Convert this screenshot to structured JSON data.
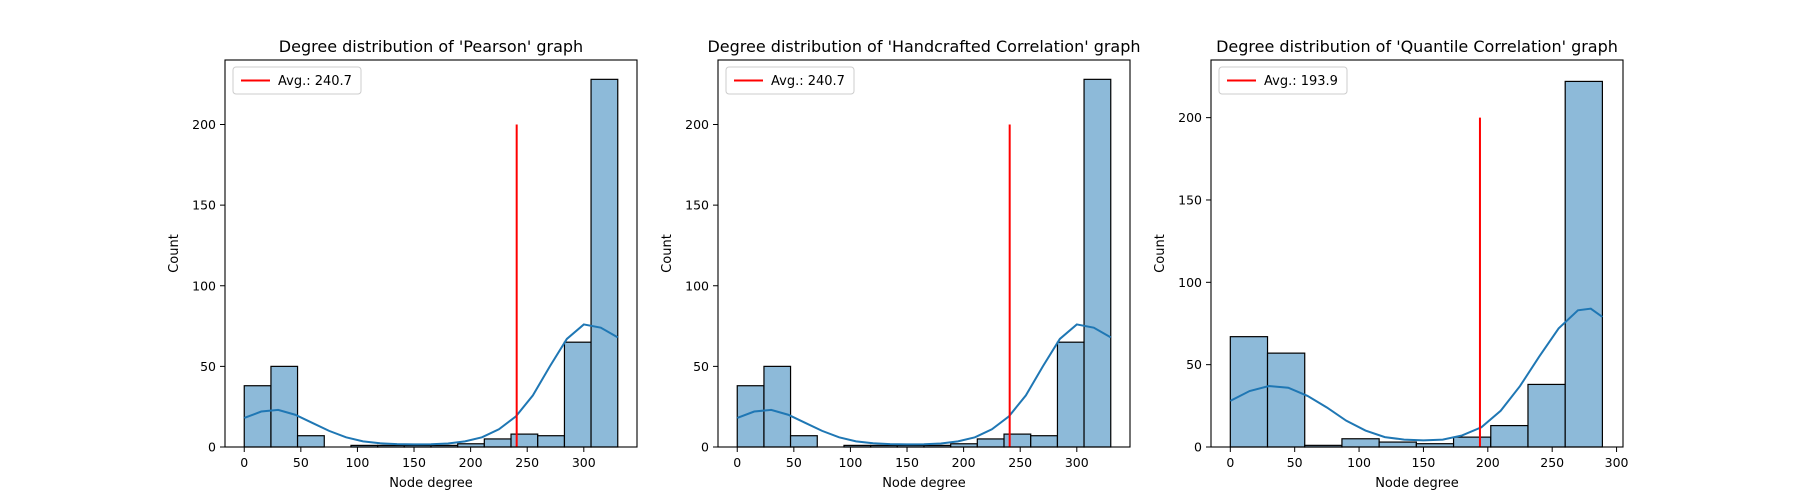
{
  "chart_data": [
    {
      "type": "bar",
      "title": "Degree distribution of 'Pearson' graph",
      "xlabel": "Node degree",
      "ylabel": "Count",
      "xlim": [
        -17,
        347
      ],
      "ylim": [
        0,
        240
      ],
      "xticks": [
        0,
        50,
        100,
        150,
        200,
        250,
        300
      ],
      "yticks": [
        0,
        50,
        100,
        150,
        200
      ],
      "legend": {
        "location": "upper-left",
        "label": "Avg.: 240.7"
      },
      "avg_line": {
        "x": 240.7,
        "y_top": 200
      },
      "colors": {
        "bar_fill": "#8dbad9",
        "bar_edge": "#000000",
        "kde": "#1f77b4",
        "avg": "#ff0000"
      },
      "bins": [
        {
          "x0": 0,
          "x1": 23.6,
          "count": 38
        },
        {
          "x0": 23.6,
          "x1": 47.1,
          "count": 50
        },
        {
          "x0": 47.1,
          "x1": 70.7,
          "count": 7
        },
        {
          "x0": 70.7,
          "x1": 94.3,
          "count": 0
        },
        {
          "x0": 94.3,
          "x1": 117.9,
          "count": 1
        },
        {
          "x0": 117.9,
          "x1": 141.4,
          "count": 1
        },
        {
          "x0": 141.4,
          "x1": 165.0,
          "count": 1
        },
        {
          "x0": 165.0,
          "x1": 188.6,
          "count": 1
        },
        {
          "x0": 188.6,
          "x1": 212.1,
          "count": 2
        },
        {
          "x0": 212.1,
          "x1": 235.7,
          "count": 5
        },
        {
          "x0": 235.7,
          "x1": 259.3,
          "count": 8
        },
        {
          "x0": 259.3,
          "x1": 282.9,
          "count": 7
        },
        {
          "x0": 282.9,
          "x1": 306.4,
          "count": 65
        },
        {
          "x0": 306.4,
          "x1": 330.0,
          "count": 228
        }
      ],
      "kde": {
        "x": [
          0,
          15,
          30,
          45,
          60,
          75,
          90,
          105,
          120,
          135,
          150,
          165,
          180,
          195,
          210,
          225,
          240,
          255,
          270,
          285,
          300,
          315,
          330
        ],
        "y": [
          18,
          22,
          23,
          20,
          15,
          10,
          6,
          3.5,
          2.3,
          1.8,
          1.6,
          1.7,
          2.2,
          3.5,
          6,
          11,
          19,
          32,
          50,
          67,
          76,
          74,
          68
        ]
      }
    },
    {
      "type": "bar",
      "title": "Degree distribution of 'Handcrafted Correlation' graph",
      "xlabel": "Node degree",
      "ylabel": "Count",
      "xlim": [
        -17,
        347
      ],
      "ylim": [
        0,
        240
      ],
      "xticks": [
        0,
        50,
        100,
        150,
        200,
        250,
        300
      ],
      "yticks": [
        0,
        50,
        100,
        150,
        200
      ],
      "legend": {
        "location": "upper-left",
        "label": "Avg.: 240.7"
      },
      "avg_line": {
        "x": 240.7,
        "y_top": 200
      },
      "colors": {
        "bar_fill": "#8dbad9",
        "bar_edge": "#000000",
        "kde": "#1f77b4",
        "avg": "#ff0000"
      },
      "bins": [
        {
          "x0": 0,
          "x1": 23.6,
          "count": 38
        },
        {
          "x0": 23.6,
          "x1": 47.1,
          "count": 50
        },
        {
          "x0": 47.1,
          "x1": 70.7,
          "count": 7
        },
        {
          "x0": 70.7,
          "x1": 94.3,
          "count": 0
        },
        {
          "x0": 94.3,
          "x1": 117.9,
          "count": 1
        },
        {
          "x0": 117.9,
          "x1": 141.4,
          "count": 1
        },
        {
          "x0": 141.4,
          "x1": 165.0,
          "count": 1
        },
        {
          "x0": 165.0,
          "x1": 188.6,
          "count": 1
        },
        {
          "x0": 188.6,
          "x1": 212.1,
          "count": 2
        },
        {
          "x0": 212.1,
          "x1": 235.7,
          "count": 5
        },
        {
          "x0": 235.7,
          "x1": 259.3,
          "count": 8
        },
        {
          "x0": 259.3,
          "x1": 282.9,
          "count": 7
        },
        {
          "x0": 282.9,
          "x1": 306.4,
          "count": 65
        },
        {
          "x0": 306.4,
          "x1": 330.0,
          "count": 228
        }
      ],
      "kde": {
        "x": [
          0,
          15,
          30,
          45,
          60,
          75,
          90,
          105,
          120,
          135,
          150,
          165,
          180,
          195,
          210,
          225,
          240,
          255,
          270,
          285,
          300,
          315,
          330
        ],
        "y": [
          18,
          22,
          23,
          20,
          15,
          10,
          6,
          3.5,
          2.3,
          1.8,
          1.6,
          1.7,
          2.2,
          3.5,
          6,
          11,
          19,
          32,
          50,
          67,
          76,
          74,
          68
        ]
      }
    },
    {
      "type": "bar",
      "title": "Degree distribution of 'Quantile Correlation' graph",
      "xlabel": "Node degree",
      "ylabel": "Count",
      "xlim": [
        -15,
        305
      ],
      "ylim": [
        0,
        235
      ],
      "xticks": [
        0,
        50,
        100,
        150,
        200,
        250,
        300
      ],
      "yticks": [
        0,
        50,
        100,
        150,
        200
      ],
      "legend": {
        "location": "upper-left",
        "label": "Avg.: 193.9"
      },
      "avg_line": {
        "x": 193.9,
        "y_top": 200
      },
      "colors": {
        "bar_fill": "#8dbad9",
        "bar_edge": "#000000",
        "kde": "#1f77b4",
        "avg": "#ff0000"
      },
      "bins": [
        {
          "x0": 0,
          "x1": 28.9,
          "count": 67
        },
        {
          "x0": 28.9,
          "x1": 57.8,
          "count": 57
        },
        {
          "x0": 57.8,
          "x1": 86.7,
          "count": 1
        },
        {
          "x0": 86.7,
          "x1": 115.6,
          "count": 5
        },
        {
          "x0": 115.6,
          "x1": 144.5,
          "count": 3
        },
        {
          "x0": 144.5,
          "x1": 173.4,
          "count": 2
        },
        {
          "x0": 173.4,
          "x1": 202.3,
          "count": 6
        },
        {
          "x0": 202.3,
          "x1": 231.2,
          "count": 13
        },
        {
          "x0": 231.2,
          "x1": 260.1,
          "count": 38
        },
        {
          "x0": 260.1,
          "x1": 289.0,
          "count": 222
        }
      ],
      "kde": {
        "x": [
          0,
          15,
          30,
          45,
          60,
          75,
          90,
          105,
          120,
          135,
          150,
          165,
          180,
          195,
          210,
          225,
          240,
          255,
          270,
          280,
          289
        ],
        "y": [
          28,
          34,
          37,
          36,
          31,
          24,
          16,
          10,
          6,
          4.5,
          4,
          4.5,
          7,
          12,
          22,
          37,
          55,
          72,
          83,
          84,
          79
        ]
      }
    }
  ]
}
